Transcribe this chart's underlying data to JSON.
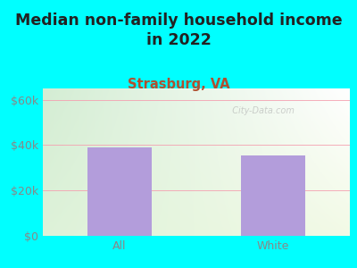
{
  "title": "Median non-family household income\nin 2022",
  "subtitle": "Strasburg, VA",
  "categories": [
    "All",
    "White"
  ],
  "values": [
    39000,
    35500
  ],
  "bar_color": "#b39ddb",
  "background_outer": "#00ffff",
  "yticks": [
    0,
    20000,
    40000,
    60000
  ],
  "ytick_labels": [
    "$0",
    "$20k",
    "$40k",
    "$60k"
  ],
  "ylim": [
    0,
    65000
  ],
  "title_fontsize": 12.5,
  "subtitle_fontsize": 10.5,
  "tick_fontsize": 9,
  "watermark": "  City-Data.com",
  "title_color": "#222222",
  "subtitle_color": "#b05030",
  "tick_color": "#888888",
  "grid_color": "#f4a0b0",
  "bar_width": 0.42
}
